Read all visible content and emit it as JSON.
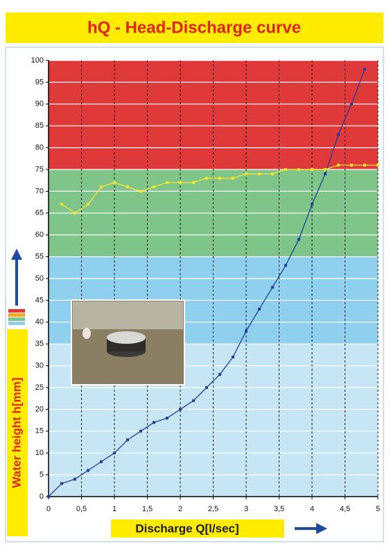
{
  "chart_data": {
    "type": "line",
    "title": "hQ - Head-Discharge curve",
    "xlabel": "Discharge Q[l/sec]",
    "ylabel": "Water height h[mm]",
    "xlim": [
      0,
      5
    ],
    "ylim": [
      0,
      100
    ],
    "xticks": [
      0,
      {
        "value": 0.5,
        "label": "0,5"
      },
      1,
      {
        "value": 1.5,
        "label": "1,5"
      },
      2,
      {
        "value": 2.5,
        "label": "2,5"
      },
      3,
      {
        "value": 3.5,
        "label": "3,5"
      },
      4,
      {
        "value": 4.5,
        "label": "4,5"
      },
      5
    ],
    "yticks": [
      0,
      5,
      10,
      15,
      20,
      25,
      30,
      35,
      40,
      45,
      50,
      55,
      60,
      65,
      70,
      75,
      80,
      85,
      90,
      95,
      100
    ],
    "grid": true,
    "bands": [
      {
        "from": 0,
        "to": 35,
        "color": "#c6e6f5"
      },
      {
        "from": 35,
        "to": 55,
        "color": "#8fd0ef"
      },
      {
        "from": 55,
        "to": 75,
        "color": "#7fc58a"
      },
      {
        "from": 75,
        "to": 100,
        "color": "#e0393a"
      }
    ],
    "series": [
      {
        "color": "#1f3f9a",
        "x": [
          0,
          0.2,
          0.4,
          0.6,
          0.8,
          1.0,
          1.2,
          1.4,
          1.6,
          1.8,
          2.0,
          2.2,
          2.4,
          2.6,
          2.8,
          3.0,
          3.2,
          3.4,
          3.6,
          3.8,
          4.0,
          4.2,
          4.4,
          4.6,
          4.8
        ],
        "values": [
          0,
          3,
          4,
          6,
          8,
          10,
          13,
          15,
          17,
          18,
          20,
          22,
          25,
          28,
          32,
          38,
          43,
          48,
          53,
          59,
          67,
          74,
          83,
          90,
          98
        ]
      },
      {
        "color": "#f5e62a",
        "x": [
          0.2,
          0.4,
          0.6,
          0.8,
          1.0,
          1.2,
          1.4,
          1.6,
          1.8,
          2.0,
          2.2,
          2.4,
          2.6,
          2.8,
          3.0,
          3.2,
          3.4,
          3.6,
          3.8,
          4.0,
          4.2,
          4.4,
          4.6,
          4.8,
          5.0
        ],
        "values": [
          67,
          65,
          67,
          71,
          72,
          71,
          70,
          71,
          72,
          72,
          72,
          73,
          73,
          73,
          74,
          74,
          74,
          75,
          75,
          75,
          75,
          76,
          76,
          76,
          76
        ]
      }
    ]
  }
}
